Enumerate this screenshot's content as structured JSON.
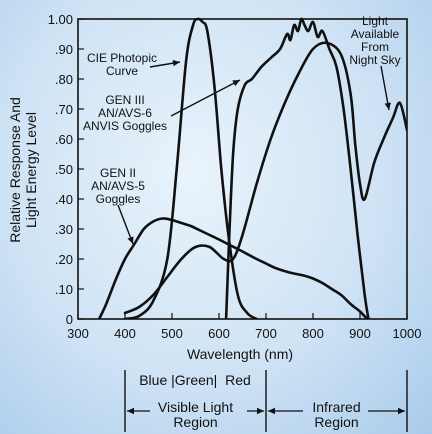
{
  "chart_data": {
    "type": "line",
    "xlabel": "Wavelength (nm)",
    "ylabel_lines": [
      "Relative Response And",
      "Light Energy Level"
    ],
    "xlim": [
      300,
      1000
    ],
    "ylim": [
      0,
      1.0
    ],
    "x_ticks": [
      "300",
      "400",
      "500",
      "600",
      "700",
      "800",
      "900",
      "1000"
    ],
    "y_ticks": [
      "0",
      ".10",
      ".20",
      ".30",
      ".40",
      ".50",
      ".60",
      ".70",
      ".80",
      ".90",
      "1.00"
    ],
    "grid": false,
    "series": [
      {
        "name": "CIE Photopic Curve",
        "x": [
          400,
          430,
          460,
          490,
          510,
          530,
          545,
          555,
          565,
          575,
          590,
          605,
          620,
          640,
          660,
          680
        ],
        "y": [
          0.0,
          0.01,
          0.06,
          0.2,
          0.5,
          0.86,
          0.98,
          1.0,
          0.99,
          0.96,
          0.78,
          0.5,
          0.28,
          0.08,
          0.02,
          0.0
        ]
      },
      {
        "name": "GEN III AN/AVS-6 ANVIS Goggles",
        "x": [
          615,
          622,
          630,
          640,
          655,
          670,
          690,
          710,
          730,
          745,
          752,
          760,
          768,
          775,
          782,
          790,
          800,
          810,
          820,
          835,
          850,
          865,
          880,
          895,
          910,
          918
        ],
        "y": [
          0.0,
          0.28,
          0.55,
          0.7,
          0.78,
          0.8,
          0.84,
          0.87,
          0.9,
          0.95,
          0.93,
          0.98,
          0.96,
          1.0,
          0.98,
          0.96,
          0.99,
          0.94,
          0.96,
          0.9,
          0.84,
          0.7,
          0.5,
          0.28,
          0.08,
          0.0
        ]
      },
      {
        "name": "GEN II AN/AVS-5 Goggles",
        "x": [
          345,
          360,
          380,
          400,
          420,
          440,
          460,
          480,
          500,
          520,
          540,
          560,
          580,
          600,
          625,
          650,
          680,
          700,
          720,
          750,
          780,
          800,
          820,
          840,
          860,
          880,
          900,
          915
        ],
        "y": [
          0.0,
          0.05,
          0.13,
          0.2,
          0.25,
          0.3,
          0.325,
          0.335,
          0.33,
          0.32,
          0.31,
          0.295,
          0.28,
          0.265,
          0.245,
          0.225,
          0.2,
          0.185,
          0.17,
          0.155,
          0.145,
          0.135,
          0.12,
          0.1,
          0.08,
          0.05,
          0.025,
          0.0
        ]
      },
      {
        "name": "Light Available From Night Sky",
        "x": [
          400,
          430,
          460,
          490,
          520,
          550,
          580,
          610,
          630,
          650,
          680,
          710,
          740,
          770,
          800,
          830,
          860,
          880,
          890,
          900,
          910,
          930,
          950,
          970,
          985,
          1000
        ],
        "y": [
          0.02,
          0.04,
          0.08,
          0.14,
          0.2,
          0.24,
          0.24,
          0.2,
          0.2,
          0.28,
          0.45,
          0.6,
          0.72,
          0.82,
          0.9,
          0.92,
          0.88,
          0.75,
          0.58,
          0.45,
          0.4,
          0.52,
          0.6,
          0.67,
          0.72,
          0.63
        ]
      }
    ],
    "annotations": [
      {
        "lines": [
          "CIE Photopic",
          "Curve"
        ]
      },
      {
        "lines": [
          "GEN III",
          "AN/AVS-6",
          "ANVIS Goggles"
        ]
      },
      {
        "lines": [
          "GEN II",
          "AN/AVS-5",
          "Goggles"
        ]
      },
      {
        "lines": [
          "Light",
          "Available",
          "From",
          "Night Sky"
        ]
      }
    ],
    "region_labels": {
      "colors_line": "Blue |Green|  Red",
      "visible": [
        "Visible Light",
        "Region"
      ],
      "infrared": [
        "Infrared",
        "Region"
      ]
    }
  }
}
